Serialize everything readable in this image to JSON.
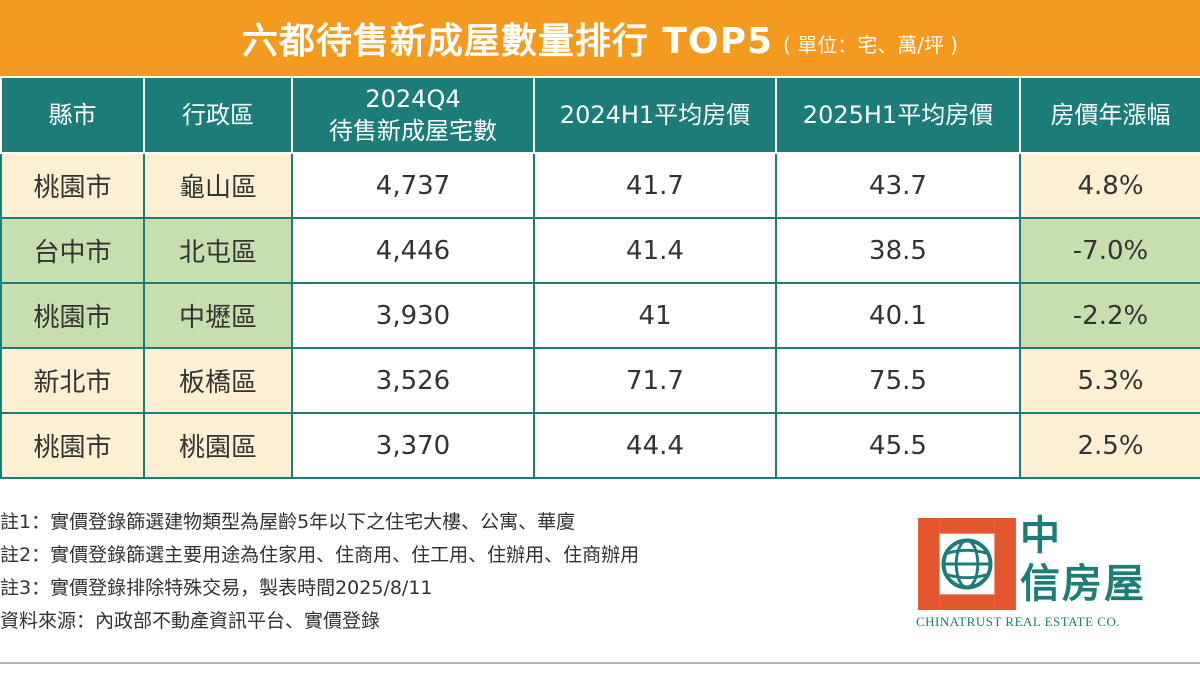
{
  "title": {
    "main": "六都待售新成屋數量排行 TOP5",
    "unit": "( 單位：宅、萬/坪 )"
  },
  "table": {
    "headers": [
      "縣市",
      "行政區",
      "2024Q4\n待售新成屋宅數",
      "2024H1平均房價",
      "2025H1平均房價",
      "房價年漲幅"
    ],
    "header_q4_line1": "2024Q4",
    "header_q4_line2": "待售新成屋宅數",
    "rows": [
      {
        "city": "桃園市",
        "district": "龜山區",
        "units": "4,737",
        "price_2024": "41.7",
        "price_2025": "43.7",
        "change": "4.8%"
      },
      {
        "city": "台中市",
        "district": "北屯區",
        "units": "4,446",
        "price_2024": "41.4",
        "price_2025": "38.5",
        "change": "-7.0%"
      },
      {
        "city": "桃園市",
        "district": "中壢區",
        "units": "3,930",
        "price_2024": "41",
        "price_2025": "40.1",
        "change": "-2.2%"
      },
      {
        "city": "新北市",
        "district": "板橋區",
        "units": "3,526",
        "price_2024": "71.7",
        "price_2025": "75.5",
        "change": "5.3%"
      },
      {
        "city": "桃園市",
        "district": "桃園區",
        "units": "3,370",
        "price_2024": "44.4",
        "price_2025": "45.5",
        "change": "2.5%"
      }
    ]
  },
  "notes": [
    "註1：實價登錄篩選建物類型為屋齡5年以下之住宅大樓、公寓、華廈",
    "註2：實價登錄篩選主要用途為住家用、住商用、住工用、住辦用、住商辦用",
    "註3：實價登錄排除特殊交易，製表時間2025/8/11",
    "資料來源：內政部不動產資訊平台、實價登錄"
  ],
  "logo": {
    "cn_line1": "中",
    "cn_line2": "信房屋",
    "en": "CHINATRUST REAL ESTATE CO.",
    "icon": "chinatrust-globe-logo-icon"
  },
  "colors": {
    "title_bar": "#f39a1f",
    "header_bg": "#1c7c78",
    "row_yellow": "#fdefd4",
    "row_green": "#c7dfae",
    "logo_red": "#e4572e",
    "logo_teal": "#1c7c78"
  }
}
